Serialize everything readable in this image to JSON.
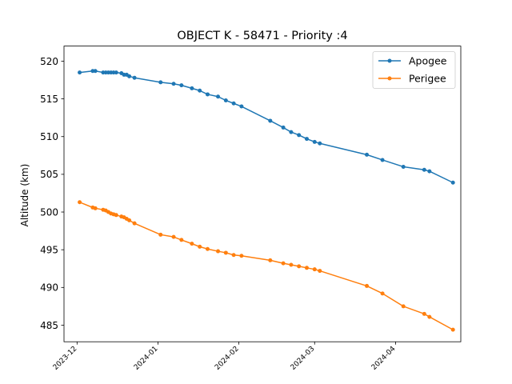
{
  "chart_data": {
    "type": "line",
    "title": "OBJECT K - 58471 - Priority :4",
    "xlabel": "",
    "ylabel": "Altitude (km)",
    "ylim": [
      482.8,
      522.0
    ],
    "xlim": [
      "2023-11-26",
      "2024-04-26"
    ],
    "y_ticks": [
      485,
      490,
      495,
      500,
      505,
      510,
      515,
      520
    ],
    "x_ticks": [
      "2023-12",
      "2024-01",
      "2024-02",
      "2024-03",
      "2024-04"
    ],
    "grid": false,
    "legend_position": "top-right",
    "series": [
      {
        "name": "Apogee",
        "color": "#1f77b4",
        "x": [
          "2023-12-02",
          "2023-12-07",
          "2023-12-08",
          "2023-12-11",
          "2023-12-12",
          "2023-12-13",
          "2023-12-14",
          "2023-12-15",
          "2023-12-16",
          "2023-12-18",
          "2023-12-19",
          "2023-12-20",
          "2023-12-21",
          "2023-12-23",
          "2024-01-02",
          "2024-01-07",
          "2024-01-10",
          "2024-01-14",
          "2024-01-17",
          "2024-01-20",
          "2024-01-24",
          "2024-01-27",
          "2024-01-30",
          "2024-02-02",
          "2024-02-13",
          "2024-02-18",
          "2024-02-21",
          "2024-02-24",
          "2024-02-27",
          "2024-03-01",
          "2024-03-03",
          "2024-03-21",
          "2024-03-27",
          "2024-04-04",
          "2024-04-12",
          "2024-04-14",
          "2024-04-23"
        ],
        "y": [
          518.5,
          518.7,
          518.7,
          518.5,
          518.5,
          518.5,
          518.5,
          518.5,
          518.5,
          518.4,
          518.2,
          518.2,
          518.0,
          517.8,
          517.2,
          517.0,
          516.8,
          516.4,
          516.1,
          515.6,
          515.3,
          514.8,
          514.4,
          514.0,
          512.1,
          511.2,
          510.6,
          510.2,
          509.7,
          509.3,
          509.1,
          507.6,
          506.9,
          506.0,
          505.6,
          505.4,
          503.9
        ]
      },
      {
        "name": "Perigee",
        "color": "#ff7f0e",
        "x": [
          "2023-12-02",
          "2023-12-07",
          "2023-12-08",
          "2023-12-11",
          "2023-12-12",
          "2023-12-13",
          "2023-12-14",
          "2023-12-15",
          "2023-12-16",
          "2023-12-18",
          "2023-12-19",
          "2023-12-20",
          "2023-12-21",
          "2023-12-23",
          "2024-01-02",
          "2024-01-07",
          "2024-01-10",
          "2024-01-14",
          "2024-01-17",
          "2024-01-20",
          "2024-01-24",
          "2024-01-27",
          "2024-01-30",
          "2024-02-02",
          "2024-02-13",
          "2024-02-18",
          "2024-02-21",
          "2024-02-24",
          "2024-02-27",
          "2024-03-01",
          "2024-03-03",
          "2024-03-21",
          "2024-03-27",
          "2024-04-04",
          "2024-04-12",
          "2024-04-14",
          "2024-04-23"
        ],
        "y": [
          501.3,
          500.6,
          500.5,
          500.3,
          500.2,
          500.0,
          499.8,
          499.7,
          499.6,
          499.4,
          499.3,
          499.1,
          498.9,
          498.5,
          497.0,
          496.7,
          496.3,
          495.8,
          495.4,
          495.1,
          494.8,
          494.6,
          494.3,
          494.2,
          493.6,
          493.2,
          493.0,
          492.8,
          492.6,
          492.4,
          492.2,
          490.2,
          489.2,
          487.5,
          486.5,
          486.1,
          484.4
        ]
      }
    ]
  }
}
